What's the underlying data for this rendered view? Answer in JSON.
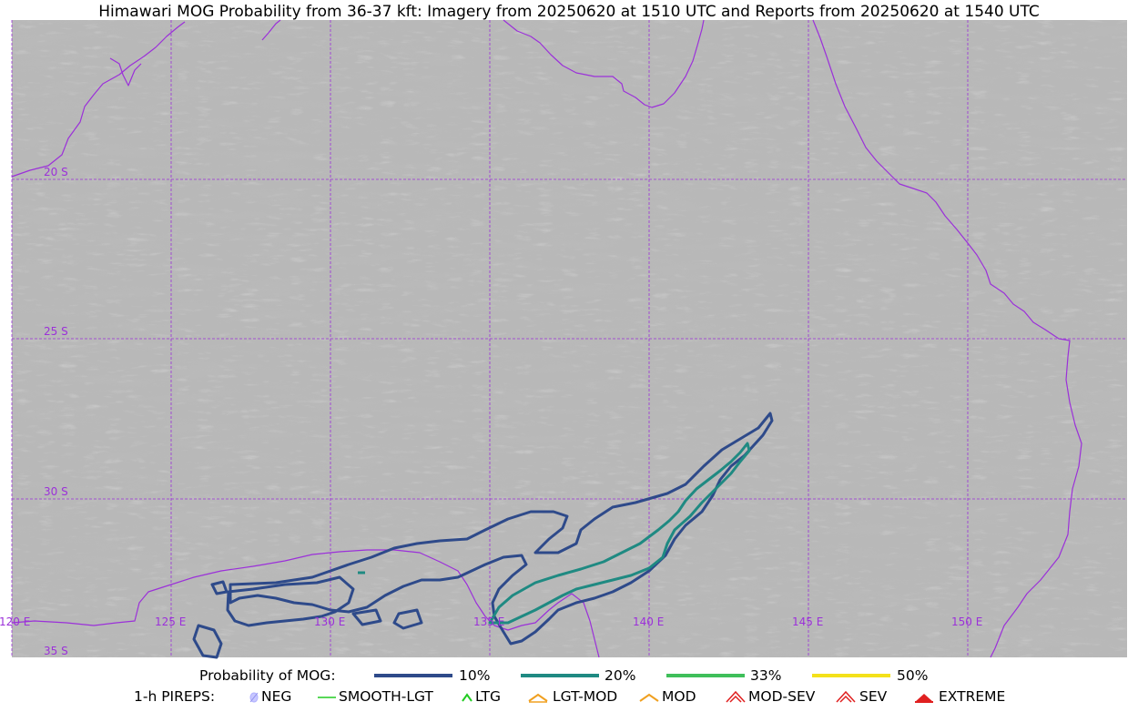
{
  "title": "Himawari MOG Probability from 36-37 kft: Imagery from 20250620 at 1510 UTC and Reports from 20250620 at 1540 UTC",
  "map": {
    "latitude_labels": [
      "20 S",
      "25 S",
      "30 S",
      "35 S"
    ],
    "longitude_labels": [
      "120 E",
      "125 E",
      "130 E",
      "135 E",
      "140 E",
      "145 E",
      "150 E"
    ],
    "colors": {
      "background_gray": "#b9b9b9",
      "coastline": "#9b30d9",
      "gridline": "#9b30d9",
      "contour_10": "#2e4a8a",
      "contour_20": "#1f8a82"
    }
  },
  "legend": {
    "probability": {
      "title": "Probability of MOG:",
      "levels": [
        {
          "label": "10%",
          "color": "#2e4a8a"
        },
        {
          "label": "20%",
          "color": "#1f8a82"
        },
        {
          "label": "33%",
          "color": "#3fbf5a"
        },
        {
          "label": "50%",
          "color": "#f4e11a"
        }
      ]
    },
    "pireps": {
      "title": "1-h PIREPS:",
      "items": [
        {
          "label": "NEG",
          "icon": "neg-icon",
          "color": "#b0b0ff"
        },
        {
          "label": "SMOOTH-LGT",
          "icon": "smooth-lgt-icon",
          "color": "#22cc22"
        },
        {
          "label": "LTG",
          "icon": "ltg-icon",
          "color": "#22cc22"
        },
        {
          "label": "LGT-MOD",
          "icon": "lgt-mod-icon",
          "color": "#f0a020"
        },
        {
          "label": "MOD",
          "icon": "mod-icon",
          "color": "#f0a020"
        },
        {
          "label": "MOD-SEV",
          "icon": "mod-sev-icon",
          "color": "#e02020"
        },
        {
          "label": "SEV",
          "icon": "sev-icon",
          "color": "#e02020"
        },
        {
          "label": "EXTREME",
          "icon": "extreme-icon",
          "color": "#e02020"
        }
      ]
    }
  }
}
